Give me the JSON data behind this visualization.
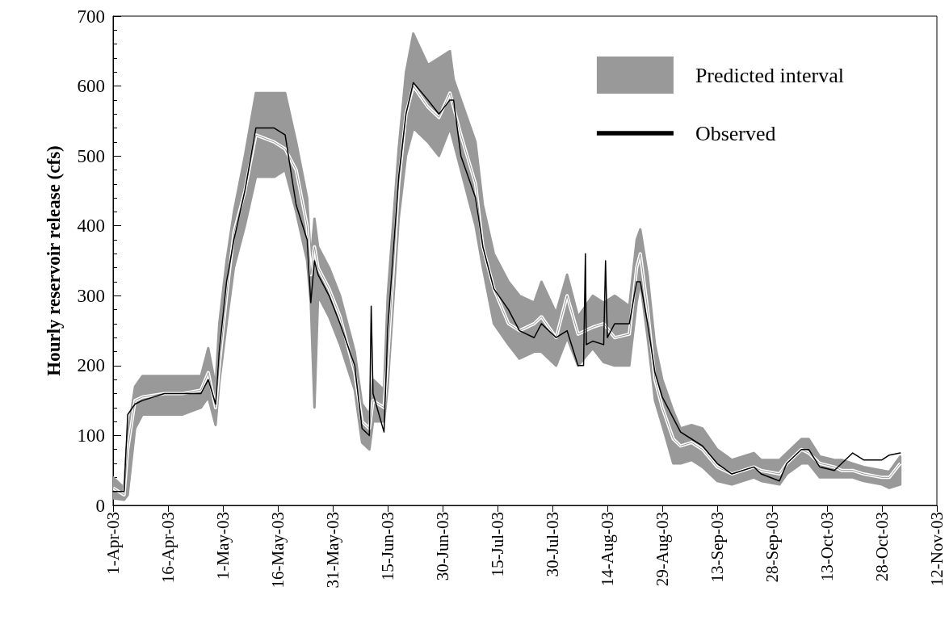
{
  "chart_data": {
    "type": "line",
    "ylabel": "Hourly reservoir release (cfs)",
    "xlim": [
      "--04-01",
      "--11-12"
    ],
    "xticks": [
      {
        "value": "--04-01",
        "label": "1-Apr-03"
      },
      {
        "value": "--04-16",
        "label": "16-Apr-03"
      },
      {
        "value": "--05-01",
        "label": "1-May-03"
      },
      {
        "value": "--05-16",
        "label": "16-May-03"
      },
      {
        "value": "--05-31",
        "label": "31-May-03"
      },
      {
        "value": "--06-15",
        "label": "15-Jun-03"
      },
      {
        "value": "--06-30",
        "label": "30-Jun-03"
      },
      {
        "value": "--07-15",
        "label": "15-Jul-03"
      },
      {
        "value": "--07-30",
        "label": "30-Jul-03"
      },
      {
        "value": "--08-14",
        "label": "14-Aug-03"
      },
      {
        "value": "--08-29",
        "label": "29-Aug-03"
      },
      {
        "value": "--09-13",
        "label": "13-Sep-03"
      },
      {
        "value": "--09-28",
        "label": "28-Sep-03"
      },
      {
        "value": "--10-13",
        "label": "13-Oct-03"
      },
      {
        "value": "--10-28",
        "label": "28-Oct-03"
      },
      {
        "value": "--11-12",
        "label": "12-Nov-03"
      }
    ],
    "ylim": [
      0,
      700
    ],
    "yticks": [
      0,
      100,
      200,
      300,
      400,
      500,
      600,
      700
    ],
    "grid": false,
    "legend": "top right",
    "marker": "none",
    "series": [
      {
        "name": "Predicted interval",
        "color": "#999999",
        "values": [
          25,
          15,
          80,
          150,
          155,
          160,
          160,
          165,
          190,
          140,
          200,
          300,
          390,
          450,
          530,
          520,
          510,
          480,
          400,
          330,
          370,
          340,
          310,
          270,
          190,
          120,
          110,
          150,
          140,
          210,
          460,
          560,
          600,
          570,
          555,
          590,
          570,
          530,
          460,
          370,
          310,
          260,
          250,
          260,
          270,
          240,
          300,
          245,
          255,
          260,
          240,
          245,
          340,
          360,
          280,
          180,
          140,
          95,
          85,
          90,
          80,
          55,
          45,
          55,
          50,
          45,
          60,
          80,
          75,
          60,
          55,
          50,
          50,
          45,
          40,
          40,
          60
        ],
        "x": [
          "--04-01",
          "--04-04",
          "--04-05",
          "--04-07",
          "--04-09",
          "--04-15",
          "--04-20",
          "--04-25",
          "--04-27",
          "--04-29",
          "--04-30",
          "--05-02",
          "--05-04",
          "--05-07",
          "--05-10",
          "--05-15",
          "--05-18",
          "--05-21",
          "--05-24",
          "--05-25",
          "--05-26",
          "--05-27",
          "--05-30",
          "--06-02",
          "--06-06",
          "--06-08",
          "--06-10",
          "--06-11",
          "--06-14",
          "--06-15",
          "--06-18",
          "--06-20",
          "--06-22",
          "--06-26",
          "--06-29",
          "--07-02",
          "--07-03",
          "--07-05",
          "--07-09",
          "--07-11",
          "--07-14",
          "--07-18",
          "--07-21",
          "--07-25",
          "--07-27",
          "--07-31",
          "--08-03",
          "--08-06",
          "--08-10",
          "--08-13",
          "--08-16",
          "--08-20",
          "--08-22",
          "--08-23",
          "--08-25",
          "--08-27",
          "--08-29",
          "--09-01",
          "--09-03",
          "--09-06",
          "--09-09",
          "--09-13",
          "--09-17",
          "--09-23",
          "--09-25",
          "--09-30",
          "--10-02",
          "--10-06",
          "--10-08",
          "--10-11",
          "--10-15",
          "--10-17",
          "--10-20",
          "--10-23",
          "--10-28",
          "--10-30",
          "--11-02"
        ],
        "lower": [
          10,
          8,
          15,
          110,
          130,
          130,
          130,
          140,
          155,
          115,
          175,
          260,
          340,
          400,
          470,
          470,
          480,
          420,
          350,
          290,
          140,
          300,
          270,
          230,
          165,
          90,
          80,
          120,
          120,
          170,
          410,
          500,
          540,
          520,
          500,
          540,
          520,
          480,
          400,
          340,
          260,
          230,
          210,
          220,
          220,
          200,
          240,
          200,
          225,
          205,
          200,
          200,
          290,
          320,
          240,
          150,
          115,
          60,
          60,
          65,
          55,
          35,
          30,
          40,
          35,
          30,
          45,
          60,
          60,
          40,
          40,
          40,
          40,
          35,
          30,
          25,
          30
        ],
        "upper": [
          40,
          25,
          100,
          170,
          185,
          185,
          185,
          185,
          225,
          170,
          260,
          350,
          420,
          500,
          590,
          590,
          590,
          520,
          440,
          350,
          410,
          370,
          340,
          300,
          220,
          145,
          130,
          180,
          165,
          300,
          510,
          620,
          675,
          630,
          640,
          650,
          610,
          580,
          520,
          430,
          360,
          320,
          300,
          290,
          320,
          275,
          330,
          270,
          300,
          290,
          300,
          285,
          380,
          395,
          330,
          230,
          180,
          135,
          110,
          115,
          110,
          80,
          65,
          75,
          65,
          65,
          75,
          95,
          95,
          70,
          65,
          65,
          60,
          55,
          50,
          48,
          70
        ]
      },
      {
        "name": "Observed",
        "color": "#000000",
        "x": [
          "--04-01",
          "--04-04",
          "--04-05",
          "--04-07",
          "--04-09",
          "--04-15",
          "--04-20",
          "--04-25",
          "--04-27",
          "--04-29",
          "--04-30",
          "--05-02",
          "--05-04",
          "--05-07",
          "--05-10",
          "--05-15",
          "--05-18",
          "--05-21",
          "--05-24",
          "--05-25",
          "--05-26",
          "--05-27",
          "--05-30",
          "--06-02",
          "--06-06",
          "--06-08",
          "--06-10",
          "--06-10T12:00",
          "--06-11",
          "--06-14",
          "--06-15",
          "--06-18",
          "--06-20",
          "--06-22",
          "--06-26",
          "--06-29",
          "--07-02",
          "--07-03",
          "--07-05",
          "--07-09",
          "--07-11",
          "--07-14",
          "--07-18",
          "--07-21",
          "--07-25",
          "--07-27",
          "--07-31",
          "--08-03",
          "--08-06",
          "--08-07T12:00",
          "--08-08",
          "--08-08T06:00",
          "--08-10",
          "--08-13",
          "--08-13T12:00",
          "--08-14",
          "--08-16",
          "--08-20",
          "--08-22",
          "--08-23",
          "--08-25",
          "--08-27",
          "--08-29",
          "--09-01",
          "--09-03",
          "--09-06",
          "--09-09",
          "--09-13",
          "--09-17",
          "--09-23",
          "--09-25",
          "--09-30",
          "--10-02",
          "--10-06",
          "--10-08",
          "--10-11",
          "--10-15",
          "--10-17",
          "--10-20",
          "--10-23",
          "--10-28",
          "--10-30",
          "--11-02"
        ],
        "values": [
          20,
          20,
          130,
          145,
          150,
          160,
          160,
          160,
          180,
          145,
          220,
          320,
          380,
          450,
          540,
          540,
          530,
          430,
          380,
          290,
          350,
          330,
          300,
          260,
          200,
          110,
          100,
          285,
          160,
          105,
          250,
          470,
          560,
          605,
          580,
          560,
          580,
          580,
          500,
          440,
          370,
          310,
          280,
          250,
          240,
          260,
          240,
          250,
          200,
          200,
          360,
          230,
          235,
          230,
          350,
          240,
          260,
          260,
          320,
          320,
          260,
          190,
          155,
          125,
          105,
          95,
          85,
          60,
          45,
          55,
          45,
          35,
          60,
          80,
          80,
          55,
          50,
          60,
          75,
          65,
          65,
          72,
          75
        ]
      }
    ]
  }
}
